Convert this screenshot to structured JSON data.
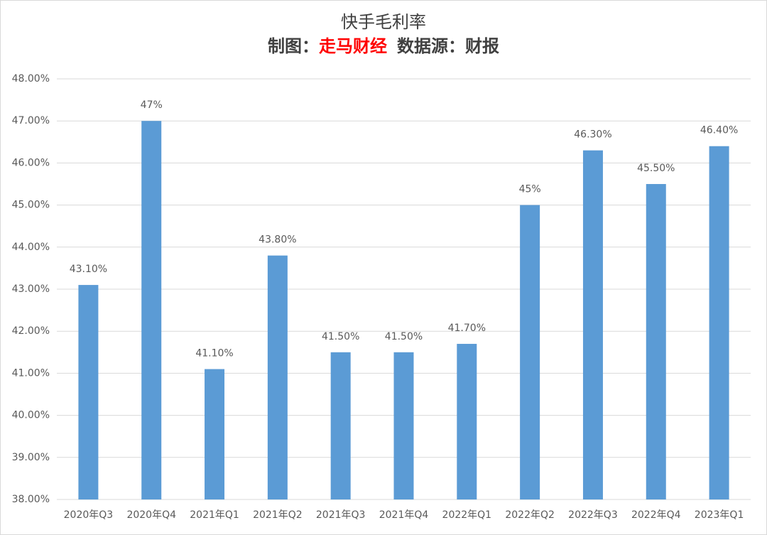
{
  "chart_data": {
    "type": "bar",
    "title": "快手毛利率",
    "subtitle": [
      {
        "text": "制图：",
        "color": "#404040"
      },
      {
        "text": "走马财经",
        "color": "#ff0000"
      },
      {
        "text": "数据源：财报",
        "color": "#404040"
      }
    ],
    "categories": [
      "2020年Q3",
      "2020年Q4",
      "2021年Q1",
      "2021年Q2",
      "2021年Q3",
      "2021年Q4",
      "2022年Q1",
      "2022年Q2",
      "2022年Q3",
      "2022年Q4",
      "2023年Q1"
    ],
    "values": [
      43.1,
      47,
      41.1,
      43.8,
      41.5,
      41.5,
      41.7,
      45,
      46.3,
      45.5,
      46.4
    ],
    "value_labels": [
      "43.10%",
      "47%",
      "41.10%",
      "43.80%",
      "41.50%",
      "41.50%",
      "41.70%",
      "45%",
      "46.30%",
      "45.50%",
      "46.40%"
    ],
    "color": "#5b9bd5",
    "ylim": [
      38,
      48
    ],
    "yticks": [
      {
        "value": 38,
        "label": "38.00%"
      },
      {
        "value": 39,
        "label": "39.00%"
      },
      {
        "value": 40,
        "label": "40.00%"
      },
      {
        "value": 41,
        "label": "41.00%"
      },
      {
        "value": 42,
        "label": "42.00%"
      },
      {
        "value": 43,
        "label": "43.00%"
      },
      {
        "value": 44,
        "label": "44.00%"
      },
      {
        "value": 45,
        "label": "45.00%"
      },
      {
        "value": 46,
        "label": "46.00%"
      },
      {
        "value": 47,
        "label": "47.00%"
      },
      {
        "value": 48,
        "label": "48.00%"
      }
    ],
    "grid": true
  }
}
